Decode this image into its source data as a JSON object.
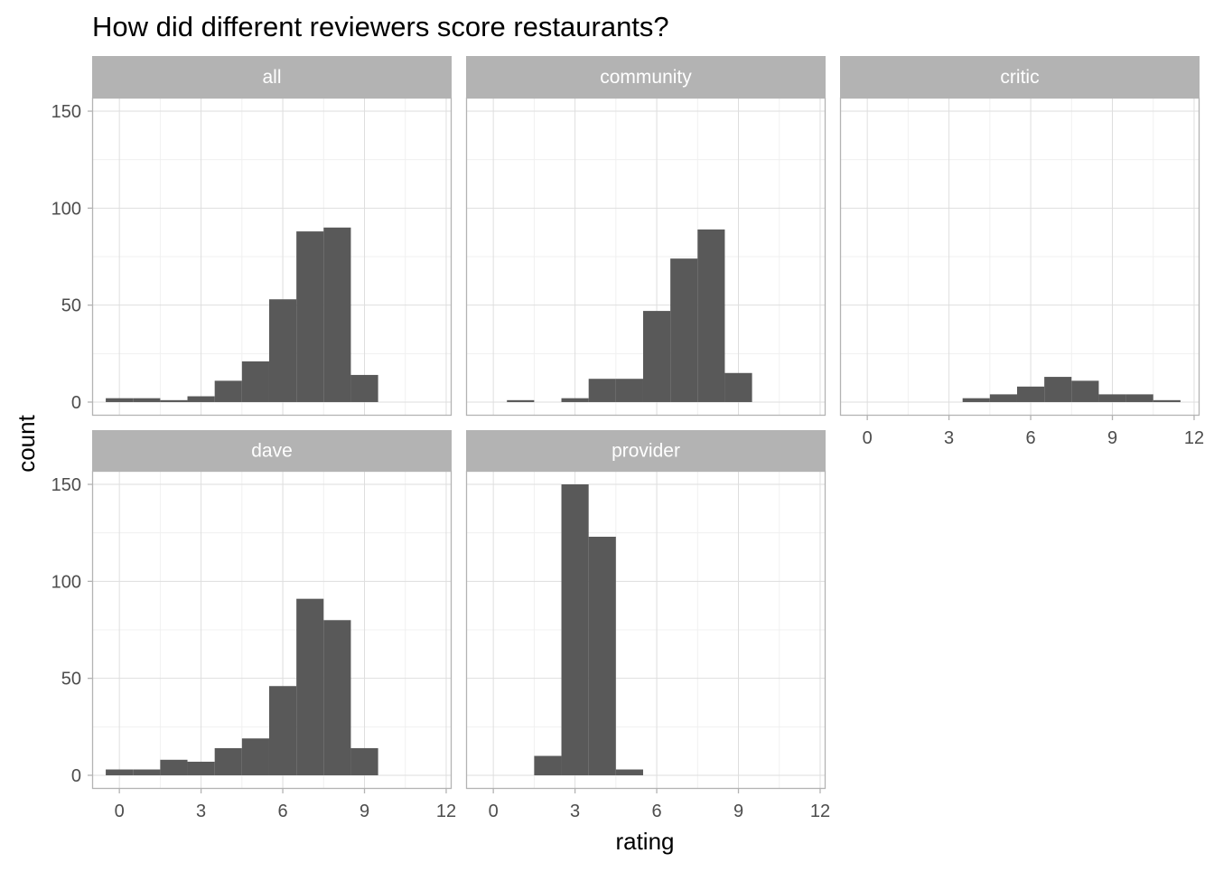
{
  "chart_data": {
    "type": "bar",
    "title": "How did different reviewers score restaurants?",
    "xlabel": "rating",
    "ylabel": "count",
    "xlim": [
      -1,
      12.2
    ],
    "ylim": [
      -7,
      157
    ],
    "x_ticks": [
      0,
      3,
      6,
      9,
      12
    ],
    "y_ticks": [
      0,
      50,
      100,
      150
    ],
    "bin_width": 1,
    "grid": true,
    "bar_color": "#595959",
    "strip_color": "#b3b3b3",
    "panels": [
      {
        "name": "all",
        "bins": [
          -0.5,
          0.5,
          1.5,
          2.5,
          3.5,
          4.5,
          5.5,
          6.5,
          7.5,
          8.5
        ],
        "values": [
          2,
          2,
          1,
          3,
          11,
          21,
          53,
          88,
          90,
          14
        ]
      },
      {
        "name": "community",
        "bins": [
          0.5,
          1.5,
          2.5,
          3.5,
          4.5,
          5.5,
          6.5,
          7.5,
          8.5
        ],
        "values": [
          1,
          0,
          2,
          12,
          12,
          47,
          74,
          89,
          15
        ]
      },
      {
        "name": "critic",
        "bins": [
          3.5,
          4.5,
          5.5,
          6.5,
          7.5,
          8.5,
          9.5,
          10.5
        ],
        "values": [
          2,
          4,
          8,
          13,
          11,
          4,
          4,
          1
        ]
      },
      {
        "name": "dave",
        "bins": [
          -0.5,
          0.5,
          1.5,
          2.5,
          3.5,
          4.5,
          5.5,
          6.5,
          7.5,
          8.5
        ],
        "values": [
          3,
          3,
          8,
          7,
          14,
          19,
          46,
          91,
          80,
          14
        ]
      },
      {
        "name": "provider",
        "bins": [
          1.5,
          2.5,
          3.5,
          4.5
        ],
        "values": [
          10,
          150,
          123,
          3
        ]
      }
    ]
  }
}
